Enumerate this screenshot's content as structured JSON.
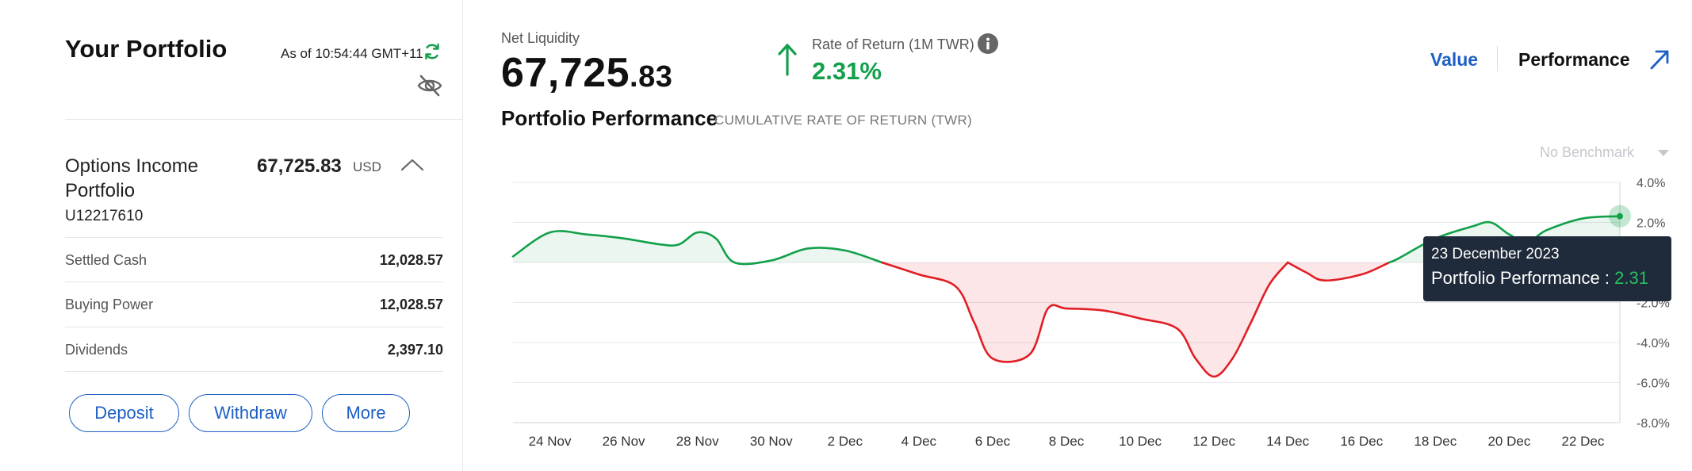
{
  "portfolio": {
    "title": "Your Portfolio",
    "as_of": "As of 10:54:44 GMT+11"
  },
  "account": {
    "name": "Options Income Portfolio",
    "id": "U12217610",
    "value": "67,725.83",
    "currency": "USD",
    "stats": [
      {
        "label": "Settled Cash",
        "value": "12,028.57"
      },
      {
        "label": "Buying Power",
        "value": "12,028.57"
      },
      {
        "label": "Dividends",
        "value": "2,397.10"
      }
    ]
  },
  "actions": {
    "deposit": "Deposit",
    "withdraw": "Withdraw",
    "more": "More"
  },
  "net_liquidity": {
    "label": "Net Liquidity",
    "value_main": "67,725",
    "value_cents": ".83"
  },
  "rate_of_return": {
    "label": "Rate of Return (1M TWR)",
    "value": "2.31%"
  },
  "performance": {
    "title": "Portfolio Performance",
    "subtitle": "CUMULATIVE RATE OF RETURN (TWR)"
  },
  "view_toggle": {
    "value": "Value",
    "performance": "Performance"
  },
  "benchmark": {
    "label": "No Benchmark"
  },
  "colors": {
    "positive": "#12a04a",
    "negative": "#e01e25",
    "accent": "#1d5fc4"
  },
  "tooltip": {
    "date": "23 December 2023",
    "label": "Portfolio Performance : ",
    "value": "2.31"
  },
  "chart_data": {
    "type": "area",
    "ylim": [
      -8,
      4
    ],
    "y_ticks": [
      "4.0%",
      "2.0%",
      "-2.0%",
      "-4.0%",
      "-6.0%",
      "-8.0%"
    ],
    "x_ticks": [
      "24 Nov",
      "26 Nov",
      "28 Nov",
      "30 Nov",
      "2 Dec",
      "4 Dec",
      "6 Dec",
      "8 Dec",
      "10 Dec",
      "12 Dec",
      "14 Dec",
      "16 Dec",
      "18 Dec",
      "20 Dec",
      "22 Dec"
    ],
    "series": [
      {
        "points": [
          [
            "2023-11-23",
            0.3
          ],
          [
            "2023-11-24",
            1.5
          ],
          [
            "2023-11-25",
            1.4
          ],
          [
            "2023-11-26",
            1.2
          ],
          [
            "2023-11-27",
            0.9
          ],
          [
            "2023-11-27.5",
            0.9
          ],
          [
            "2023-11-28",
            1.5
          ],
          [
            "2023-11-28.5",
            1.2
          ],
          [
            "2023-11-29",
            0.0
          ],
          [
            "2023-11-30",
            0.1
          ],
          [
            "2023-12-01",
            0.7
          ],
          [
            "2023-12-02",
            0.6
          ],
          [
            "2023-12-03",
            0.0
          ],
          [
            "2023-12-04",
            -0.6
          ],
          [
            "2023-12-05",
            -1.2
          ],
          [
            "2023-12-05.5",
            -3.0
          ],
          [
            "2023-12-06",
            -4.8
          ],
          [
            "2023-12-07",
            -4.6
          ],
          [
            "2023-12-07.5",
            -2.3
          ],
          [
            "2023-12-08",
            -2.3
          ],
          [
            "2023-12-09",
            -2.4
          ],
          [
            "2023-12-10",
            -2.8
          ],
          [
            "2023-12-11",
            -3.3
          ],
          [
            "2023-12-11.5",
            -4.8
          ],
          [
            "2023-12-12",
            -5.7
          ],
          [
            "2023-12-12.5",
            -4.8
          ],
          [
            "2023-12-13",
            -3.0
          ],
          [
            "2023-12-13.5",
            -1.1
          ],
          [
            "2023-12-14",
            0.0
          ],
          [
            "2023-12-14.5",
            -0.5
          ],
          [
            "2023-12-15",
            -0.9
          ],
          [
            "2023-12-16",
            -0.6
          ],
          [
            "2023-12-17",
            0.2
          ],
          [
            "2023-12-18",
            1.2
          ],
          [
            "2023-12-19",
            1.8
          ],
          [
            "2023-12-19.5",
            2.0
          ],
          [
            "2023-12-20",
            1.4
          ],
          [
            "2023-12-20.5",
            1.0
          ],
          [
            "2023-12-21",
            1.6
          ],
          [
            "2023-12-22",
            2.2
          ],
          [
            "2023-12-23",
            2.31
          ]
        ]
      }
    ]
  }
}
